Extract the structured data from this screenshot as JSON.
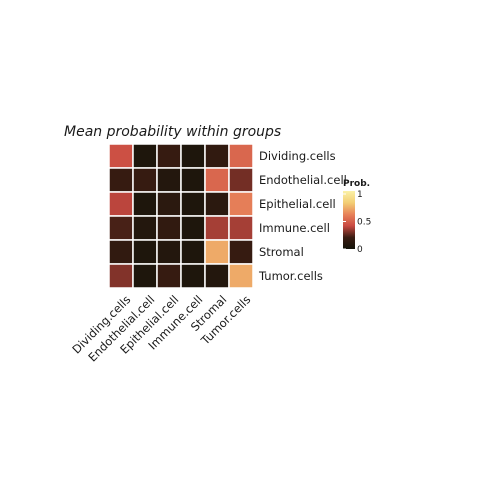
{
  "chart_data": {
    "type": "heatmap",
    "title": "Mean probability within groups",
    "rows": [
      "Dividing.cells",
      "Endothelial.cell",
      "Epithelial.cell",
      "Immune.cell",
      "Stromal",
      "Tumor.cells"
    ],
    "columns": [
      "Dividing.cells",
      "Endothelial.cell",
      "Epithelial.cell",
      "Immune.cell",
      "Stromal",
      "Tumor.cells"
    ],
    "values": [
      [
        0.42,
        0.05,
        0.18,
        0.05,
        0.15,
        0.5
      ],
      [
        0.18,
        0.18,
        0.08,
        0.05,
        0.5,
        0.28
      ],
      [
        0.38,
        0.05,
        0.12,
        0.05,
        0.12,
        0.58
      ],
      [
        0.22,
        0.08,
        0.15,
        0.05,
        0.35,
        0.35
      ],
      [
        0.15,
        0.05,
        0.08,
        0.05,
        0.7,
        0.18
      ],
      [
        0.3,
        0.05,
        0.18,
        0.05,
        0.08,
        0.7
      ]
    ],
    "legend": {
      "title": "Prob.",
      "ticks": [
        "1",
        "0.5",
        "0"
      ],
      "colors": [
        "#14140a",
        "#3a1c12",
        "#c94a42",
        "#e8845a",
        "#f3cf75",
        "#fbf1a8"
      ]
    }
  }
}
